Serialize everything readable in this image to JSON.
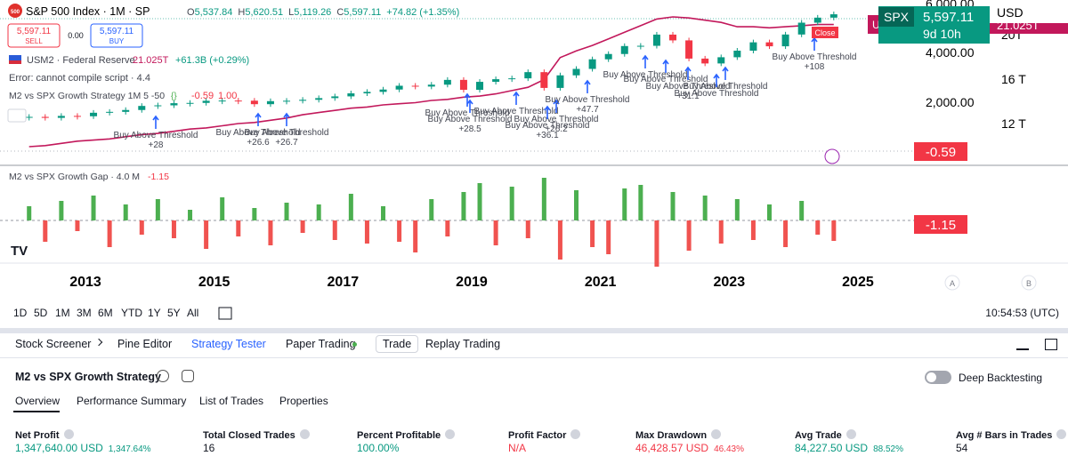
{
  "header": {
    "icon": "500",
    "symbol": "S&P 500 Index · 1M · SP",
    "ohlc": [
      {
        "label": "O",
        "value": "5,537.84"
      },
      {
        "label": "H",
        "value": "5,620.51"
      },
      {
        "label": "L",
        "value": "5,119.26"
      },
      {
        "label": "C",
        "value": "5,597.11"
      }
    ],
    "change": "+74.82 (+1.35%)"
  },
  "order": {
    "sell_price": "5,597.11",
    "sell": "SELL",
    "spread": "0.00",
    "buy_price": "5,597.11",
    "buy": "BUY"
  },
  "legend": {
    "m2_name": "USM2 · Federal Reserve",
    "m2_value": "21.025T",
    "m2_change": "+61.3B (+0.29%)",
    "error": "Error: cannot compile script · 4.4",
    "strategy": "M2 vs SPX Growth Strategy 1M 5 -50",
    "strategy_values": [
      "-0.59",
      "1.00"
    ]
  },
  "price_axis": {
    "ticks": [
      "6,000.00",
      "4,000.00",
      "2,000.00"
    ],
    "currency": "USD"
  },
  "m2_axis": {
    "ticks": [
      "20T",
      "16 T",
      "12 T"
    ]
  },
  "badges": {
    "spx_symbol": "SPX",
    "spx_price": "5,597.11",
    "spx_countdown": "9d 10h",
    "m2_symbol": "USM2",
    "m2_value": "21.025T",
    "strategy_value": "-0.59",
    "gap_value": "-1.15",
    "close_tag": "Close"
  },
  "trades": [
    {
      "text": "Buy Above Threshold",
      "profit": "+28"
    },
    {
      "text": "Buy Above Threshold",
      "profit": "+26.6"
    },
    {
      "text": "Buy Above Threshold",
      "profit": "+26.7"
    },
    {
      "text": "Buy Above Threshold"
    },
    {
      "text": "Buy Above Threshold",
      "profit": "+28.5"
    },
    {
      "text": "Buy Above Threshold"
    },
    {
      "text": "Buy Above Threshold",
      "profit": "+26.2"
    },
    {
      "text": "Buy Above Threshold",
      "profit": "+36.1"
    },
    {
      "text": "Buy Above Threshold",
      "profit": "+47.7"
    },
    {
      "text": "Buy Above Threshold"
    },
    {
      "text": "Buy Above Threshold"
    },
    {
      "text": "Buy Above Threshold",
      "profit": "+31.1"
    },
    {
      "text": "Buy Above Threshold"
    },
    {
      "text": "Buy Above Threshold"
    },
    {
      "text": "Buy Above Threshold",
      "profit": "+108"
    }
  ],
  "gap_pane": {
    "title": "M2 vs SPX Growth Gap · 4.0 M",
    "value": "-1.15"
  },
  "time_axis": [
    "2013",
    "2015",
    "2017",
    "2019",
    "2021",
    "2023",
    "2025"
  ],
  "scale_buttons": [
    "A",
    "B"
  ],
  "series": {
    "spx_close": [
      1400,
      1360,
      1440,
      1426,
      1569,
      1606,
      1682,
      1848,
      1872,
      1960,
      1972,
      2059,
      2068,
      2063,
      1920,
      2044,
      2060,
      2099,
      2168,
      2239,
      2363,
      2423,
      2519,
      2674,
      2641,
      2718,
      2914,
      2507,
      2834,
      2942,
      2977,
      3231,
      2585,
      3100,
      3363,
      3756,
      3973,
      4298,
      4308,
      4766,
      4530,
      3785,
      3586,
      3840,
      4109,
      4450,
      4288,
      4770,
      5254,
      5460,
      5597
    ],
    "usm2": [
      9.9,
      10.0,
      10.2,
      10.4,
      10.5,
      10.6,
      10.8,
      11.0,
      11.1,
      11.3,
      11.5,
      11.6,
      11.8,
      12.0,
      12.1,
      12.3,
      12.5,
      12.8,
      13.0,
      13.2,
      13.4,
      13.5,
      13.7,
      13.8,
      13.9,
      14.1,
      14.2,
      14.4,
      14.5,
      14.7,
      15.0,
      15.3,
      16.0,
      18.0,
      18.6,
      19.1,
      19.7,
      20.3,
      20.9,
      21.5,
      21.7,
      21.6,
      21.4,
      21.2,
      20.8,
      20.8,
      20.7,
      20.8,
      20.9,
      21.0,
      21.0
    ],
    "gap": [
      0.8,
      -1.2,
      1.1,
      -0.6,
      1.4,
      -1.5,
      0.9,
      -0.8,
      1.2,
      -1.0,
      0.6,
      -1.6,
      1.3,
      -0.9,
      0.7,
      -1.4,
      1.0,
      -0.7,
      0.9,
      -1.1,
      1.5,
      -1.3,
      0.8,
      -1.2,
      -1.8,
      1.2,
      -0.9,
      1.6,
      2.1,
      -1.4,
      1.9,
      -1.0,
      2.4,
      -2.2,
      1.7,
      -1.5,
      -1.9,
      1.8,
      2.0,
      -2.6,
      1.6,
      -1.7,
      1.4,
      -1.3,
      1.2,
      -1.1,
      0.9,
      -1.5,
      1.1,
      -0.8,
      -1.15
    ]
  },
  "timeframes": [
    "1D",
    "5D",
    "1M",
    "3M",
    "6M",
    "YTD",
    "1Y",
    "5Y",
    "All"
  ],
  "clock": "10:54:53 (UTC)",
  "bottom_tabs": [
    "Stock Screener",
    "Pine Editor",
    "Strategy Tester",
    "Paper Trading",
    "Trade",
    "Replay Trading"
  ],
  "strategy_panel": {
    "title": "M2 vs SPX Growth Strategy",
    "deep_backtesting": "Deep Backtesting",
    "tabs": [
      "Overview",
      "Performance Summary",
      "List of Trades",
      "Properties"
    ],
    "metrics": [
      {
        "label": "Net Profit",
        "value": "1,347,640.00 USD",
        "percent": "1,347.64%"
      },
      {
        "label": "Total Closed Trades",
        "value": "16"
      },
      {
        "label": "Percent Profitable",
        "value": "100.00%"
      },
      {
        "label": "Profit Factor",
        "value": "N/A"
      },
      {
        "label": "Max Drawdown",
        "value": "46,428.57 USD",
        "percent": "46.43%"
      },
      {
        "label": "Avg Trade",
        "value": "84,227.50 USD",
        "percent": "88.52%"
      },
      {
        "label": "Avg # Bars in Trades",
        "value": "54"
      }
    ]
  }
}
